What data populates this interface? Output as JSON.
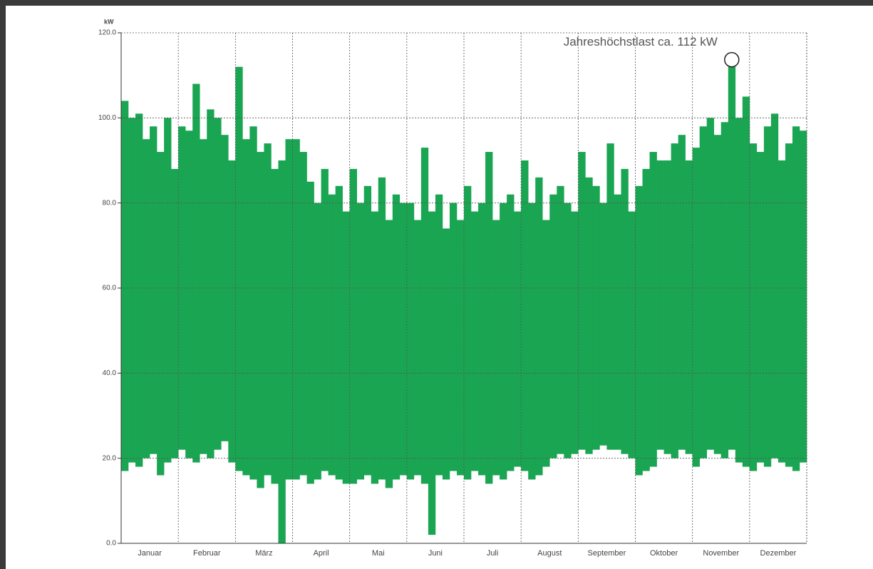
{
  "chart_data": {
    "type": "range",
    "y_unit": "kW",
    "annotation": "Jahreshöchstlast ca. 112 kW",
    "months": [
      "Januar",
      "Februar",
      "März",
      "April",
      "Mai",
      "Juni",
      "Juli",
      "August",
      "September",
      "Oktober",
      "November",
      "Dezember"
    ],
    "color": "#1aa552",
    "high": [
      104,
      100,
      101,
      95,
      98,
      92,
      100,
      88,
      98,
      97,
      108,
      95,
      102,
      100,
      96,
      90,
      112,
      95,
      98,
      92,
      94,
      88,
      90,
      95,
      95,
      92,
      85,
      80,
      88,
      82,
      84,
      78,
      88,
      80,
      84,
      78,
      86,
      76,
      82,
      80,
      80,
      76,
      93,
      78,
      82,
      74,
      80,
      76,
      84,
      78,
      80,
      92,
      76,
      80,
      82,
      78,
      90,
      80,
      86,
      76,
      82,
      84,
      80,
      78,
      92,
      86,
      84,
      80,
      94,
      82,
      88,
      78,
      84,
      88,
      92,
      90,
      90,
      94,
      96,
      90,
      93,
      98,
      100,
      96,
      99,
      112,
      100,
      105,
      94,
      92,
      98,
      101,
      90,
      94,
      98,
      97
    ],
    "low": [
      17,
      19,
      18,
      20,
      21,
      16,
      19,
      20,
      22,
      20,
      19,
      21,
      20,
      22,
      24,
      19,
      17,
      16,
      15,
      13,
      16,
      14,
      0,
      15,
      15,
      16,
      14,
      15,
      17,
      16,
      15,
      14,
      14,
      15,
      16,
      14,
      15,
      13,
      15,
      16,
      15,
      16,
      14,
      2,
      16,
      15,
      17,
      16,
      15,
      17,
      16,
      14,
      16,
      15,
      17,
      18,
      17,
      15,
      16,
      18,
      20,
      21,
      20,
      21,
      22,
      21,
      22,
      23,
      22,
      22,
      21,
      20,
      16,
      17,
      18,
      22,
      21,
      20,
      22,
      21,
      18,
      20,
      22,
      21,
      20,
      22,
      19,
      18,
      17,
      19,
      18,
      20,
      19,
      18,
      17,
      19
    ],
    "ylim": [
      0,
      120
    ],
    "yticks": [
      {
        "value": 0,
        "label": "0.0"
      },
      {
        "value": 20,
        "label": "20.0"
      },
      {
        "value": 40,
        "label": "40.0"
      },
      {
        "value": 60,
        "label": "60.0"
      },
      {
        "value": 80,
        "label": "80.0"
      },
      {
        "value": 100,
        "label": "100.0"
      },
      {
        "value": 120,
        "label": "120.0"
      }
    ],
    "grid": true
  }
}
